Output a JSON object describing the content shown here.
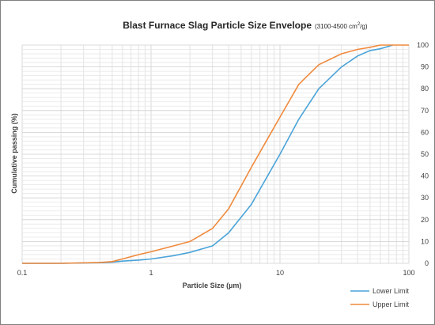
{
  "chart_data": {
    "type": "line",
    "title": "Blast Furnace Slag Particle Size Envelope",
    "subtitle": "(3100-4500 cm",
    "subtitle_sup": "2",
    "subtitle_end": "/g)",
    "xlabel": "Particle Size (µm)",
    "ylabel": "Cumulative passing (%)",
    "x_scale": "log",
    "xlim": [
      0.1,
      100
    ],
    "ylim": [
      0,
      100
    ],
    "x_tick_labels": [
      "0.1",
      "1",
      "10",
      "100"
    ],
    "x_tick_values": [
      0.1,
      1,
      10,
      100
    ],
    "y_tick_labels": [
      "0",
      "10",
      "20",
      "30",
      "40",
      "50",
      "60",
      "70",
      "80",
      "90",
      "100"
    ],
    "y_tick_values": [
      0,
      10,
      20,
      30,
      40,
      50,
      60,
      70,
      80,
      90,
      100
    ],
    "y_axis_side": "right",
    "grid": true,
    "legend_position": "bottom-right",
    "series": [
      {
        "name": "Lower Limit",
        "color": "#4aa3d8",
        "x": [
          0.1,
          0.2,
          0.4,
          0.5,
          0.6,
          0.8,
          1,
          1.5,
          2,
          3,
          4,
          6,
          8,
          10,
          14,
          20,
          30,
          40,
          50,
          60,
          75
        ],
        "y": [
          0,
          0,
          0.3,
          0.5,
          1,
          1.5,
          2,
          3.5,
          5,
          8,
          14,
          27,
          40,
          50,
          66,
          80,
          90,
          95,
          97.5,
          98.3,
          100
        ]
      },
      {
        "name": "Upper Limit",
        "color": "#f08a3c",
        "x": [
          0.1,
          0.2,
          0.4,
          0.5,
          0.6,
          0.8,
          1,
          1.5,
          2,
          3,
          4,
          6,
          8,
          10,
          14,
          20,
          30,
          40,
          50,
          60,
          75,
          100
        ],
        "y": [
          0,
          0,
          0.4,
          0.8,
          2,
          4,
          5.3,
          8,
          10,
          16,
          25,
          44,
          57,
          67,
          82,
          91,
          96,
          98,
          99,
          100,
          100,
          100
        ]
      }
    ]
  }
}
